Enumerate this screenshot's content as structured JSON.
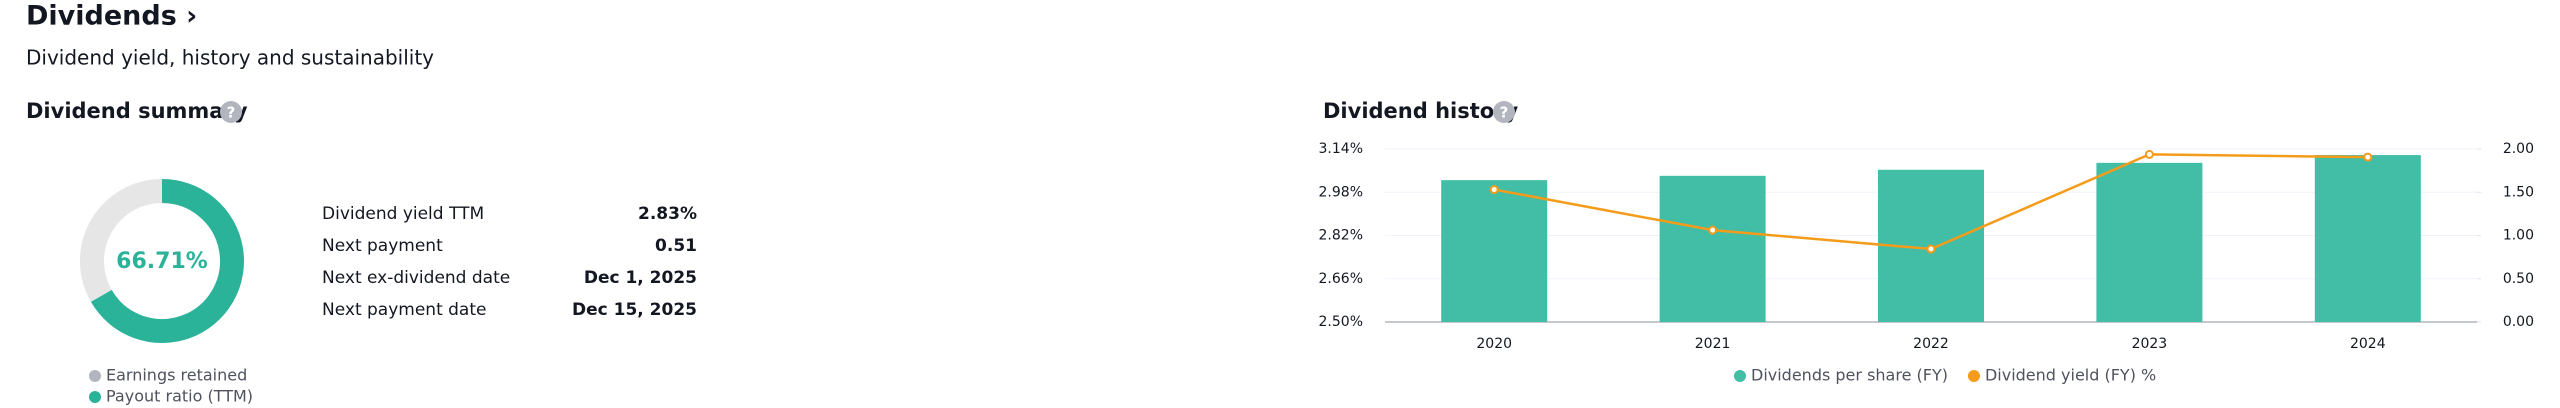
{
  "header": {
    "title": "Dividends ›",
    "subtitle": "Dividend yield, history and sustainability"
  },
  "summary": {
    "title": "Dividend summary",
    "rows": [
      [
        "Dividend yield TTM",
        "2.83%"
      ],
      [
        "Next payment",
        "0.51"
      ],
      [
        "Next ex-dividend date",
        "Dec 1, 2025"
      ],
      [
        "Next payment date",
        "Dec 15, 2025"
      ]
    ]
  },
  "history": {
    "title": "Dividend history"
  },
  "chart_data": [
    {
      "type": "donut",
      "categories": [
        "Earnings retained",
        "Payout ratio (TTM)"
      ],
      "values": [
        33.29,
        66.71
      ],
      "colors": [
        "#e6e6e6",
        "#2bb39a"
      ],
      "legend_colors": [
        "#b2b5be",
        "#2bb39a"
      ],
      "center_label": "66.71%"
    },
    {
      "type": "combo",
      "categories": [
        "2020",
        "2021",
        "2022",
        "2023",
        "2024"
      ],
      "series": [
        {
          "name": "Dividends per share (FY)",
          "color": "#42bea7",
          "kind": "bar",
          "axis": "y2",
          "values": [
            1.64,
            1.69,
            1.76,
            1.84,
            1.93
          ]
        },
        {
          "name": "Dividend yield (FY) %",
          "color": "#f59b1a",
          "kind": "line",
          "values": [
            2.99,
            2.84,
            2.77,
            3.12,
            3.11
          ]
        }
      ],
      "ylim": [
        2.5,
        3.14
      ],
      "yticks": [
        {
          "value": 2.5,
          "label": "2.50%"
        },
        {
          "value": 2.66,
          "label": "2.66%"
        },
        {
          "value": 2.82,
          "label": "2.82%"
        },
        {
          "value": 2.98,
          "label": "2.98%"
        },
        {
          "value": 3.14,
          "label": "3.14%"
        }
      ],
      "y2lim": [
        0,
        2
      ],
      "y2ticks": [
        {
          "value": 0,
          "label": "0.00"
        },
        {
          "value": 0.5,
          "label": "0.50"
        },
        {
          "value": 1,
          "label": "1.00"
        },
        {
          "value": 1.5,
          "label": "1.50"
        },
        {
          "value": 2,
          "label": "2.00"
        }
      ],
      "grid": true
    }
  ]
}
